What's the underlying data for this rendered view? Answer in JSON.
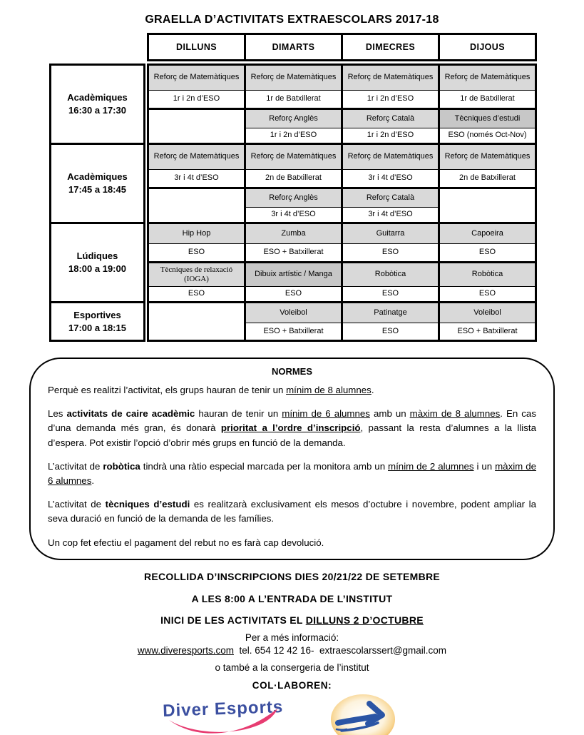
{
  "page": {
    "title": "GRAELLA D’ACTIVITATS EXTRAESCOLARS 2017-18"
  },
  "table": {
    "days": [
      "DILLUNS",
      "DIMARTS",
      "DIMECRES",
      "DIJOUS"
    ],
    "blocks": [
      {
        "category": "Acadèmiques",
        "time": "16:30 a 17:30",
        "days": [
          {
            "slots": [
              {
                "name": "Reforç de Matemàtiques",
                "level": "1r i 2n d’ESO"
              },
              null
            ]
          },
          {
            "slots": [
              {
                "name": "Reforç de Matemàtiques",
                "level": "1r de Batxillerat"
              },
              {
                "name": "Reforç Anglès",
                "level": "1r i 2n d’ESO"
              }
            ]
          },
          {
            "slots": [
              {
                "name": "Reforç de Matemàtiques",
                "level": "1r i 2n d’ESO"
              },
              {
                "name": "Reforç Català",
                "level": "1r i 2n d’ESO"
              }
            ]
          },
          {
            "slots": [
              {
                "name": "Reforç de Matemàtiques",
                "level": "1r de Batxillerat"
              },
              {
                "name": "Tècniques d’estudi",
                "level": "ESO (només Oct-Nov)"
              }
            ]
          }
        ]
      },
      {
        "category": "Acadèmiques",
        "time": "17:45 a 18:45",
        "days": [
          {
            "slots": [
              {
                "name": "Reforç de Matemàtiques",
                "level": "3r i 4t d’ESO"
              },
              null
            ]
          },
          {
            "slots": [
              {
                "name": "Reforç de Matemàtiques",
                "level": "2n de Batxillerat"
              },
              {
                "name": "Reforç Anglès",
                "level": "3r i 4t d’ESO"
              }
            ]
          },
          {
            "slots": [
              {
                "name": "Reforç de Matemàtiques",
                "level": "3r i 4t d’ESO"
              },
              {
                "name": "Reforç Català",
                "level": "3r i 4t d’ESO"
              }
            ]
          },
          {
            "slots": [
              {
                "name": "Reforç de Matemàtiques",
                "level": "2n de Batxillerat"
              },
              null
            ]
          }
        ]
      },
      {
        "category": "Lúdiques",
        "time": "18:00 a 19:00",
        "days": [
          {
            "slots": [
              {
                "name": "Hip Hop",
                "level": "ESO"
              },
              {
                "name": "Tècniques de relaxació (IOGA)",
                "level": "ESO"
              }
            ]
          },
          {
            "slots": [
              {
                "name": "Zumba",
                "level": "ESO + Batxillerat"
              },
              {
                "name": "Dibuix artístic / Manga",
                "level": "ESO"
              }
            ]
          },
          {
            "slots": [
              {
                "name": "Guitarra",
                "level": "ESO"
              },
              {
                "name": "Robòtica",
                "level": "ESO"
              }
            ]
          },
          {
            "slots": [
              {
                "name": "Capoeira",
                "level": "ESO"
              },
              {
                "name": "Robòtica",
                "level": "ESO"
              }
            ]
          }
        ]
      },
      {
        "category": "Esportives",
        "time": "17:00 a 18:15",
        "days": [
          {
            "slots": [
              null
            ]
          },
          {
            "slots": [
              {
                "name": "Voleibol",
                "level": "ESO + Batxillerat"
              }
            ]
          },
          {
            "slots": [
              {
                "name": "Patinatge",
                "level": "ESO"
              }
            ]
          },
          {
            "slots": [
              {
                "name": "Voleibol",
                "level": "ESO + Batxillerat"
              }
            ]
          }
        ]
      }
    ]
  },
  "normes": {
    "title": "NORMES",
    "paragraphs": [
      [
        {
          "t": "Perquè es realitzi l’activitat, els grups hauran de tenir un "
        },
        {
          "t": "mínim de 8 alumnes",
          "u": 1
        },
        {
          "t": "."
        }
      ],
      [
        {
          "t": "Les "
        },
        {
          "t": "activitats de caire acadèmic",
          "b": 1
        },
        {
          "t": " hauran de tenir un "
        },
        {
          "t": "mínim de 6 alumnes",
          "u": 1
        },
        {
          "t": " amb un "
        },
        {
          "t": "màxim de 8 alumnes",
          "u": 1
        },
        {
          "t": ". En cas d’una demanda més gran, és donarà "
        },
        {
          "t": "prioritat a l’ordre d’inscripció",
          "b": 1,
          "u": 1
        },
        {
          "t": ", passant la resta d’alumnes a la llista d’espera. Pot existir l’opció d’obrir més grups en funció de la demanda."
        }
      ],
      [
        {
          "t": "L’activitat de "
        },
        {
          "t": "robòtica",
          "b": 1
        },
        {
          "t": " tindrà una ràtio especial marcada per la monitora amb un "
        },
        {
          "t": "mínim de 2 alumnes",
          "u": 1
        },
        {
          "t": " i un "
        },
        {
          "t": "màxim de 6 alumnes",
          "u": 1
        },
        {
          "t": "."
        }
      ],
      [
        {
          "t": "L’activitat de "
        },
        {
          "t": "tècniques d’estudi",
          "b": 1
        },
        {
          "t": " es realitzarà exclusivament els mesos d’octubre i novembre, podent ampliar la seva duració en funció de la demanda de les famílies."
        }
      ],
      [
        {
          "t": "Un cop fet efectiu el pagament del rebut no es farà cap devolució."
        }
      ]
    ]
  },
  "footer": {
    "line1": "RECOLLIDA D’INSCRIPCIONS DIES 20/21/22 DE SETEMBRE",
    "line2": "A LES 8:00 A L’ENTRADA DE L’INSTITUT",
    "line3_prefix": "INICI DE LES ACTIVITATS EL ",
    "line3_underlined": "DILLUNS 2 D’OCTUBRE",
    "info": "Per a més informació:",
    "website": "www.diveresports.com",
    "contact_rest": "  tel. 654 12 42 16-  extraescolarssert@gmail.com",
    "info2": "o també a la consergeria de l’institut",
    "collaborate": "COL·LABOREN:",
    "logo1_text": "Diver Esports"
  },
  "colors": {
    "cell_gray": "#d9d9d9",
    "cell_gray_dark": "#c7c7c7",
    "logo_text_blue": "#3b4fa0",
    "logo_pink": "#e73c71",
    "logo_ring_orange": "#eea83e",
    "logo_arrow_blue": "#2b55a5"
  }
}
